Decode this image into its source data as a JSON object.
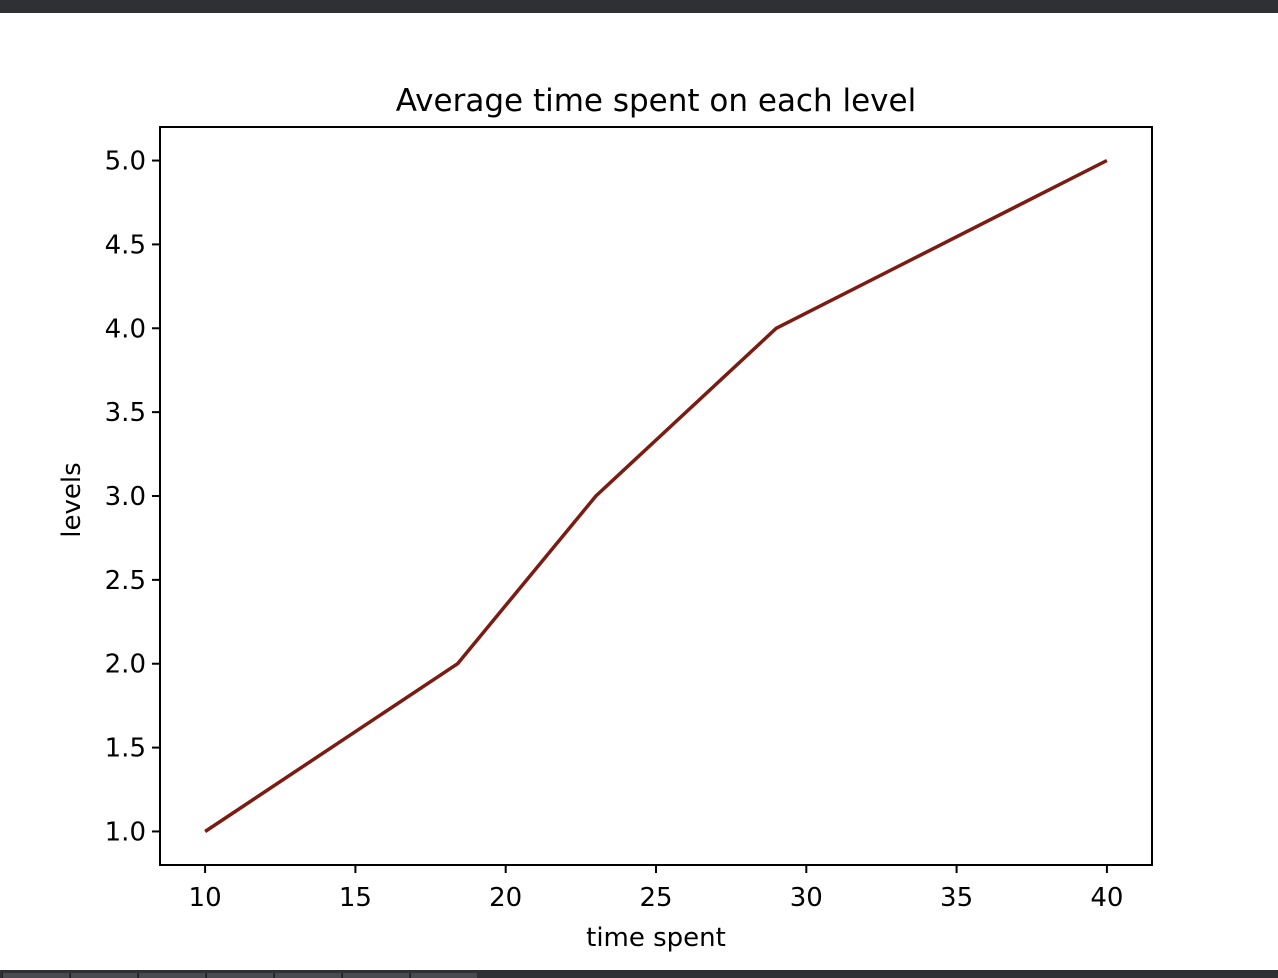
{
  "colors": {
    "window_chrome": "#2f3034",
    "line": "#7b1b12",
    "axes": "#000000",
    "background": "#ffffff"
  },
  "chart_data": {
    "type": "line",
    "title": "Average time spent on each level",
    "xlabel": "time spent",
    "ylabel": "levels",
    "xlim": [
      8.5,
      41.5
    ],
    "ylim": [
      0.8,
      5.2
    ],
    "xticks": [
      10,
      15,
      20,
      25,
      30,
      35,
      40
    ],
    "xtick_labels": [
      "10",
      "15",
      "20",
      "25",
      "30",
      "35",
      "40"
    ],
    "yticks": [
      1.0,
      1.5,
      2.0,
      2.5,
      3.0,
      3.5,
      4.0,
      4.5,
      5.0
    ],
    "ytick_labels": [
      "1.0",
      "1.5",
      "2.0",
      "2.5",
      "3.0",
      "3.5",
      "4.0",
      "4.5",
      "5.0"
    ],
    "grid": false,
    "series": [
      {
        "x": [
          10,
          18.4,
          23,
          29,
          40
        ],
        "y": [
          1,
          2,
          3,
          4,
          5
        ],
        "color": "#7b1b12"
      }
    ]
  }
}
